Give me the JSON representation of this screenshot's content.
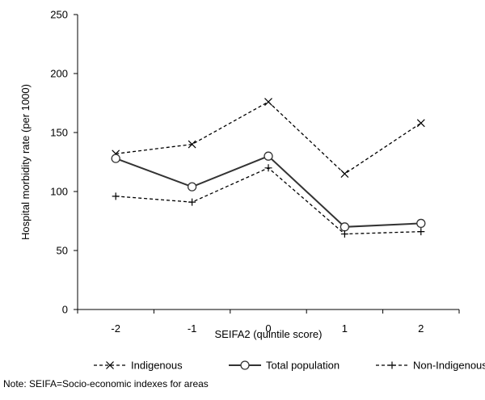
{
  "chart_data": {
    "type": "line",
    "categories": [
      "-2",
      "-1",
      "0",
      "1",
      "2"
    ],
    "xlabel": "SEIFA2 (quintile score)",
    "ylabel": "Hospital morbidity rate (per 1000)",
    "ylim": [
      0,
      250
    ],
    "yticks": [
      "0",
      "50",
      "100",
      "150",
      "200",
      "250"
    ],
    "grid": false,
    "legend_position": "bottom",
    "series": [
      {
        "name": "Indigenous",
        "values": [
          132,
          140,
          176,
          115,
          158
        ],
        "style": "dashed",
        "marker": "x",
        "color": "#000000"
      },
      {
        "name": "Total population",
        "values": [
          128,
          104,
          130,
          70,
          73
        ],
        "style": "solid",
        "marker": "circle",
        "color": "#333333"
      },
      {
        "name": "Non-Indigenous",
        "values": [
          96,
          91,
          120,
          64,
          66
        ],
        "style": "dashed",
        "marker": "plus",
        "color": "#000000"
      }
    ]
  },
  "note": "Note: SEIFA=Socio-economic indexes for areas"
}
